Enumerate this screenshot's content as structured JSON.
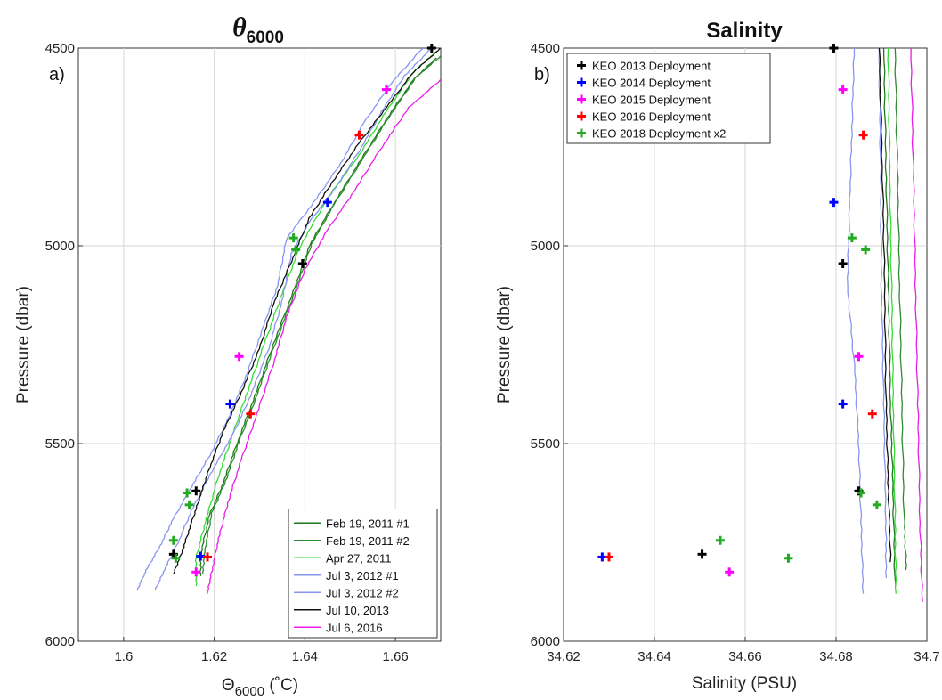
{
  "chart_data": [
    {
      "type": "line",
      "panel_label": "a)",
      "title_symbol": "θ",
      "title_subscript": "6000",
      "xlabel_symbol": "Θ",
      "xlabel_subscript": "6000",
      "xlabel_unit": " (˚C)",
      "ylabel": "Pressure (dbar)",
      "xlim": [
        1.59,
        1.67
      ],
      "ylim": [
        6000,
        4500
      ],
      "xticks": [
        1.6,
        1.62,
        1.64,
        1.66
      ],
      "xtick_labels": [
        "1.6",
        "1.62",
        "1.64",
        "1.66"
      ],
      "yticks": [
        4500,
        5000,
        5500,
        6000
      ],
      "ytick_labels": [
        "4500",
        "5000",
        "5500",
        "6000"
      ],
      "grid": true,
      "legend_position": "bottom-right",
      "series": [
        {
          "name": "Feb 19, 2011 #1",
          "color": "#1e7a1e",
          "points": [
            [
              1.617,
              5835
            ],
            [
              1.617,
              5780
            ],
            [
              1.619,
              5680
            ],
            [
              1.622,
              5600
            ],
            [
              1.625,
              5500
            ],
            [
              1.629,
              5380
            ],
            [
              1.633,
              5250
            ],
            [
              1.638,
              5100
            ],
            [
              1.641,
              5000
            ],
            [
              1.646,
              4900
            ],
            [
              1.652,
              4790
            ],
            [
              1.658,
              4680
            ],
            [
              1.664,
              4580
            ],
            [
              1.669,
              4525
            ]
          ]
        },
        {
          "name": "Feb 19, 2011 #2",
          "color": "#2e8b2e",
          "points": [
            [
              1.6175,
              5830
            ],
            [
              1.6178,
              5775
            ],
            [
              1.6195,
              5675
            ],
            [
              1.6225,
              5595
            ],
            [
              1.6255,
              5495
            ],
            [
              1.6295,
              5375
            ],
            [
              1.6335,
              5245
            ],
            [
              1.6385,
              5095
            ],
            [
              1.6415,
              4995
            ],
            [
              1.6465,
              4895
            ],
            [
              1.6525,
              4785
            ],
            [
              1.6585,
              4675
            ],
            [
              1.6645,
              4575
            ],
            [
              1.67,
              4520
            ]
          ]
        },
        {
          "name": "Apr 27, 2011",
          "color": "#33dd33",
          "points": [
            [
              1.616,
              5860
            ],
            [
              1.616,
              5790
            ],
            [
              1.618,
              5700
            ],
            [
              1.621,
              5580
            ],
            [
              1.624,
              5480
            ],
            [
              1.627,
              5380
            ],
            [
              1.631,
              5250
            ],
            [
              1.635,
              5120
            ],
            [
              1.639,
              5000
            ],
            [
              1.645,
              4880
            ],
            [
              1.652,
              4770
            ],
            [
              1.658,
              4660
            ],
            [
              1.664,
              4560
            ],
            [
              1.669,
              4510
            ]
          ]
        },
        {
          "name": "Jul 3, 2012 #1",
          "color": "#8a95f0",
          "points": [
            [
              1.603,
              5870
            ],
            [
              1.605,
              5820
            ],
            [
              1.608,
              5760
            ],
            [
              1.611,
              5690
            ],
            [
              1.615,
              5610
            ],
            [
              1.619,
              5530
            ],
            [
              1.623,
              5440
            ],
            [
              1.627,
              5330
            ],
            [
              1.631,
              5200
            ],
            [
              1.634,
              5100
            ],
            [
              1.636,
              4980
            ],
            [
              1.642,
              4890
            ],
            [
              1.648,
              4790
            ],
            [
              1.653,
              4690
            ],
            [
              1.659,
              4590
            ],
            [
              1.666,
              4500
            ]
          ]
        },
        {
          "name": "Jul 3, 2012 #2",
          "color": "#8a95f0",
          "points": [
            [
              1.607,
              5870
            ],
            [
              1.609,
              5820
            ],
            [
              1.612,
              5750
            ],
            [
              1.615,
              5670
            ],
            [
              1.619,
              5580
            ],
            [
              1.624,
              5480
            ],
            [
              1.628,
              5380
            ],
            [
              1.632,
              5260
            ],
            [
              1.635,
              5140
            ],
            [
              1.637,
              5020
            ],
            [
              1.641,
              4940
            ],
            [
              1.647,
              4850
            ],
            [
              1.652,
              4760
            ],
            [
              1.657,
              4660
            ],
            [
              1.662,
              4570
            ],
            [
              1.668,
              4500
            ]
          ]
        },
        {
          "name": "Jul 10, 2013",
          "color": "#111111",
          "points": [
            [
              1.611,
              5830
            ],
            [
              1.613,
              5770
            ],
            [
              1.615,
              5700
            ],
            [
              1.617,
              5630
            ],
            [
              1.619,
              5560
            ],
            [
              1.622,
              5470
            ],
            [
              1.626,
              5370
            ],
            [
              1.63,
              5260
            ],
            [
              1.633,
              5150
            ],
            [
              1.637,
              5040
            ],
            [
              1.641,
              4930
            ],
            [
              1.646,
              4840
            ],
            [
              1.652,
              4740
            ],
            [
              1.658,
              4650
            ],
            [
              1.664,
              4560
            ],
            [
              1.67,
              4500
            ]
          ]
        },
        {
          "name": "Jul 6, 2016",
          "color": "#e81ee8",
          "points": [
            [
              1.6185,
              5880
            ],
            [
              1.6195,
              5820
            ],
            [
              1.621,
              5740
            ],
            [
              1.623,
              5650
            ],
            [
              1.626,
              5540
            ],
            [
              1.629,
              5440
            ],
            [
              1.633,
              5300
            ],
            [
              1.636,
              5180
            ],
            [
              1.64,
              5060
            ],
            [
              1.645,
              4960
            ],
            [
              1.651,
              4860
            ],
            [
              1.657,
              4750
            ],
            [
              1.663,
              4650
            ],
            [
              1.67,
              4580
            ]
          ]
        }
      ],
      "markers": [
        {
          "x": 1.668,
          "y": 4500,
          "color": "#000000"
        },
        {
          "x": 1.658,
          "y": 4605,
          "color": "#ff00ff"
        },
        {
          "x": 1.652,
          "y": 4720,
          "color": "#ff0000"
        },
        {
          "x": 1.645,
          "y": 4890,
          "color": "#0000ff"
        },
        {
          "x": 1.6375,
          "y": 4980,
          "color": "#22aa22"
        },
        {
          "x": 1.638,
          "y": 5010,
          "color": "#22aa22"
        },
        {
          "x": 1.6395,
          "y": 5045,
          "color": "#000000"
        },
        {
          "x": 1.6255,
          "y": 5280,
          "color": "#ff00ff"
        },
        {
          "x": 1.6235,
          "y": 5400,
          "color": "#0000ff"
        },
        {
          "x": 1.628,
          "y": 5425,
          "color": "#ff0000"
        },
        {
          "x": 1.616,
          "y": 5620,
          "color": "#000000"
        },
        {
          "x": 1.614,
          "y": 5625,
          "color": "#22aa22"
        },
        {
          "x": 1.6145,
          "y": 5655,
          "color": "#22aa22"
        },
        {
          "x": 1.611,
          "y": 5745,
          "color": "#22aa22"
        },
        {
          "x": 1.611,
          "y": 5780,
          "color": "#000000"
        },
        {
          "x": 1.6115,
          "y": 5790,
          "color": "#22aa22"
        },
        {
          "x": 1.617,
          "y": 5785,
          "color": "#0000ff"
        },
        {
          "x": 1.6185,
          "y": 5787,
          "color": "#ff0000"
        },
        {
          "x": 1.616,
          "y": 5825,
          "color": "#ff00ff"
        }
      ]
    },
    {
      "type": "line",
      "panel_label": "b)",
      "title": "Salinity",
      "xlabel": "Salinity (PSU)",
      "ylabel": "Pressure (dbar)",
      "xlim": [
        34.62,
        34.7
      ],
      "ylim": [
        6000,
        4500
      ],
      "xticks": [
        34.62,
        34.64,
        34.66,
        34.68,
        34.7
      ],
      "xtick_labels": [
        "34.62",
        "34.64",
        "34.66",
        "34.68",
        "34.7"
      ],
      "yticks": [
        4500,
        5000,
        5500,
        6000
      ],
      "ytick_labels": [
        "4500",
        "5000",
        "5500",
        "6000"
      ],
      "grid": true,
      "legend_position": "top-left",
      "legend": [
        {
          "label": "KEO 2013 Deployment",
          "color": "#000000"
        },
        {
          "label": "KEO 2014 Deployment",
          "color": "#0000ff"
        },
        {
          "label": "KEO 2015 Deployment",
          "color": "#ff00ff"
        },
        {
          "label": "KEO 2016 Deployment",
          "color": "#ff0000"
        },
        {
          "label": "KEO 2018 Deployment x2",
          "color": "#22aa22"
        }
      ],
      "series": [
        {
          "color": "#8a95f0",
          "points": [
            [
              34.684,
              4500
            ],
            [
              34.6835,
              4700
            ],
            [
              34.683,
              4900
            ],
            [
              34.6825,
              5100
            ],
            [
              34.684,
              5300
            ],
            [
              34.685,
              5500
            ],
            [
              34.6855,
              5700
            ],
            [
              34.686,
              5880
            ]
          ]
        },
        {
          "color": "#8a95f0",
          "points": [
            [
              34.6895,
              4500
            ],
            [
              34.6898,
              4800
            ],
            [
              34.69,
              5100
            ],
            [
              34.6905,
              5400
            ],
            [
              34.691,
              5700
            ],
            [
              34.691,
              5840
            ]
          ]
        },
        {
          "color": "#111111",
          "points": [
            [
              34.6895,
              4500
            ],
            [
              34.6902,
              4800
            ],
            [
              34.6907,
              5100
            ],
            [
              34.691,
              5400
            ],
            [
              34.6915,
              5600
            ],
            [
              34.692,
              5800
            ]
          ]
        },
        {
          "color": "#1e7a1e",
          "points": [
            [
              34.6905,
              4500
            ],
            [
              34.691,
              4800
            ],
            [
              34.6915,
              5100
            ],
            [
              34.692,
              5400
            ],
            [
              34.6925,
              5600
            ],
            [
              34.693,
              5860
            ]
          ]
        },
        {
          "color": "#33dd33",
          "points": [
            [
              34.6915,
              4500
            ],
            [
              34.6918,
              4800
            ],
            [
              34.6922,
              5100
            ],
            [
              34.6926,
              5400
            ],
            [
              34.693,
              5700
            ],
            [
              34.6932,
              5880
            ]
          ]
        },
        {
          "color": "#2e8b2e",
          "points": [
            [
              34.693,
              4500
            ],
            [
              34.6935,
              4800
            ],
            [
              34.694,
              5100
            ],
            [
              34.6945,
              5400
            ],
            [
              34.695,
              5700
            ],
            [
              34.6955,
              5820
            ]
          ]
        },
        {
          "color": "#e81ee8",
          "points": [
            [
              34.6965,
              4500
            ],
            [
              34.697,
              4800
            ],
            [
              34.6975,
              5100
            ],
            [
              34.698,
              5400
            ],
            [
              34.6985,
              5700
            ],
            [
              34.699,
              5900
            ]
          ]
        }
      ],
      "markers": [
        {
          "x": 34.6795,
          "y": 4500,
          "color": "#000000"
        },
        {
          "x": 34.6815,
          "y": 4605,
          "color": "#ff00ff"
        },
        {
          "x": 34.686,
          "y": 4720,
          "color": "#ff0000"
        },
        {
          "x": 34.6795,
          "y": 4890,
          "color": "#0000ff"
        },
        {
          "x": 34.6835,
          "y": 4980,
          "color": "#22aa22"
        },
        {
          "x": 34.6865,
          "y": 5010,
          "color": "#22aa22"
        },
        {
          "x": 34.6815,
          "y": 5045,
          "color": "#000000"
        },
        {
          "x": 34.685,
          "y": 5280,
          "color": "#ff00ff"
        },
        {
          "x": 34.6815,
          "y": 5400,
          "color": "#0000ff"
        },
        {
          "x": 34.688,
          "y": 5425,
          "color": "#ff0000"
        },
        {
          "x": 34.685,
          "y": 5620,
          "color": "#000000"
        },
        {
          "x": 34.6855,
          "y": 5625,
          "color": "#22aa22"
        },
        {
          "x": 34.689,
          "y": 5655,
          "color": "#22aa22"
        },
        {
          "x": 34.6545,
          "y": 5745,
          "color": "#22aa22"
        },
        {
          "x": 34.6505,
          "y": 5780,
          "color": "#000000"
        },
        {
          "x": 34.6695,
          "y": 5790,
          "color": "#22aa22"
        },
        {
          "x": 34.6285,
          "y": 5787,
          "color": "#0000ff"
        },
        {
          "x": 34.63,
          "y": 5787,
          "color": "#ff0000"
        },
        {
          "x": 34.6565,
          "y": 5825,
          "color": "#ff00ff"
        }
      ]
    }
  ]
}
